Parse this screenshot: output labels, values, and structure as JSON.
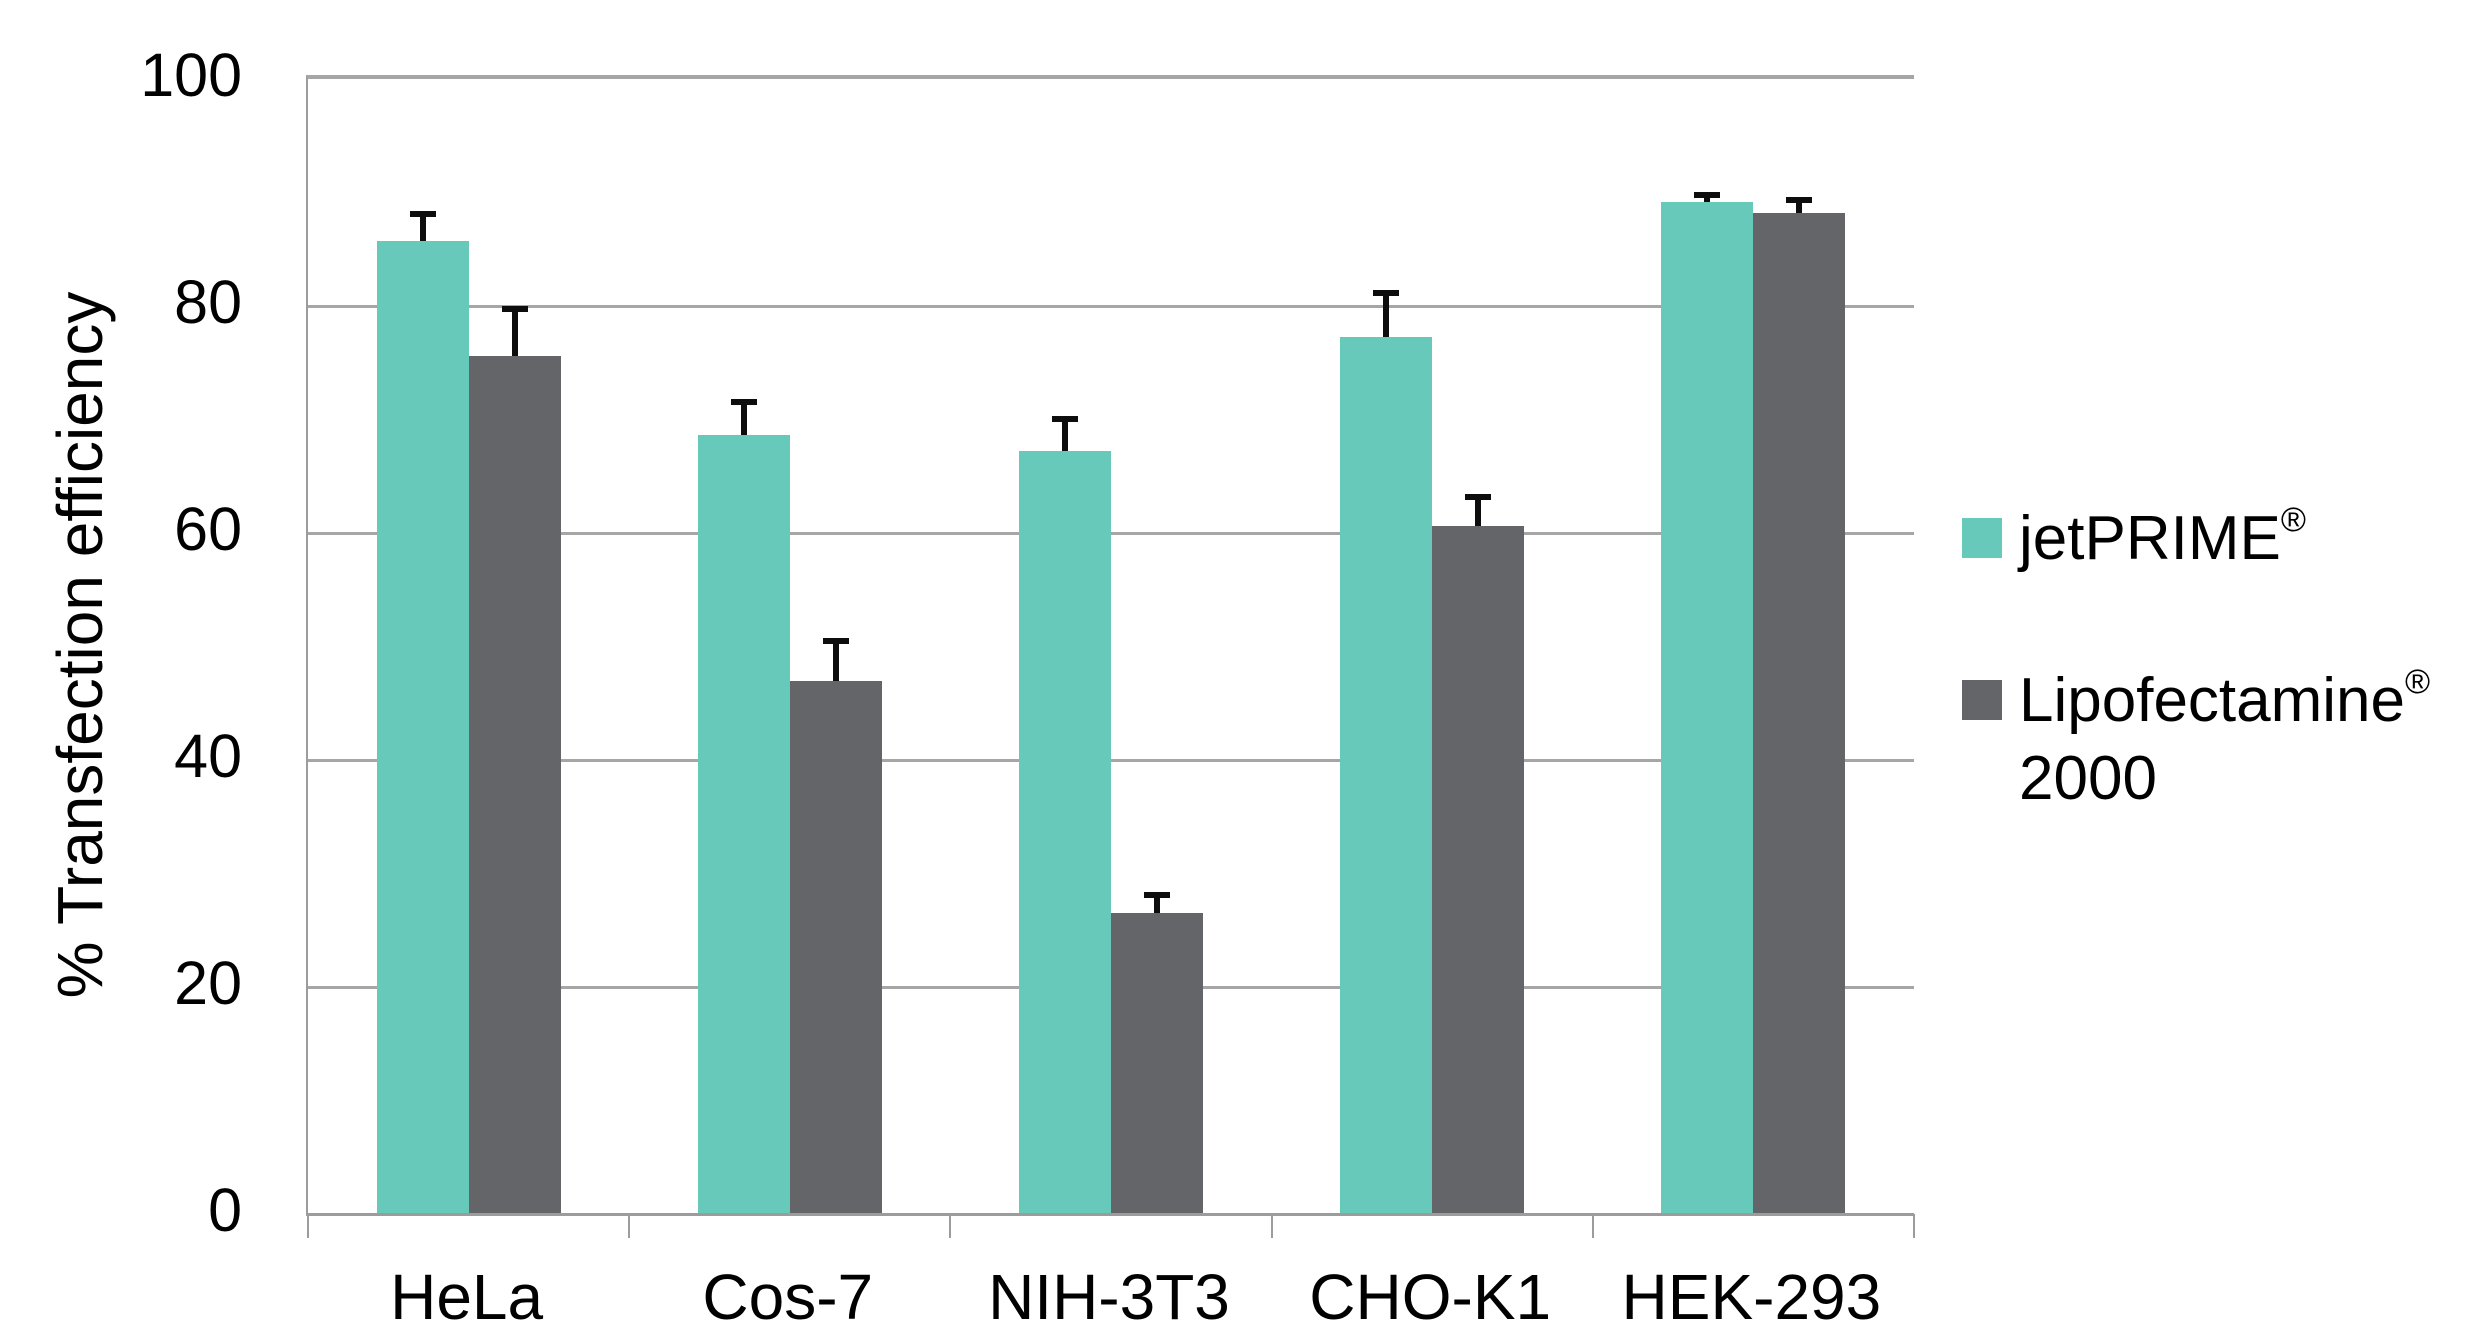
{
  "chart_data": {
    "type": "bar",
    "title": "",
    "xlabel": "",
    "ylabel": "% Transfection efficiency",
    "categories": [
      "HeLa",
      "Cos-7",
      "NIH-3T3",
      "CHO-K1",
      "HEK-293"
    ],
    "series": [
      {
        "name": "jetPRIME®",
        "color": "#67c9ba",
        "values": [
          85.7,
          68.6,
          67.2,
          77.3,
          89.2
        ],
        "errors_plus": [
          2.5,
          3.0,
          2.9,
          3.9,
          0.7
        ]
      },
      {
        "name": "Lipofectamine® 2000",
        "color": "#636569",
        "values": [
          75.6,
          47.0,
          26.5,
          60.6,
          88.2
        ],
        "errors_plus": [
          4.2,
          3.6,
          1.7,
          2.7,
          1.2
        ]
      }
    ],
    "ylim": [
      0,
      100
    ],
    "yticks": [
      0,
      20,
      40,
      60,
      80,
      100
    ],
    "grid": true,
    "error_bars": true,
    "legend_position": "right"
  },
  "legend": {
    "items": [
      {
        "name": "jetPRIME",
        "reg": "®",
        "line2": "",
        "color": "#67c9ba"
      },
      {
        "name": "Lipofectamine",
        "reg": "®",
        "line2": "2000",
        "color": "#636569"
      }
    ]
  },
  "colors": {
    "grid": "#a6a6a6",
    "axis": "#9c9c9c",
    "error_bar": "#0d0d0d",
    "background": "#ffffff",
    "text": "#000000"
  }
}
